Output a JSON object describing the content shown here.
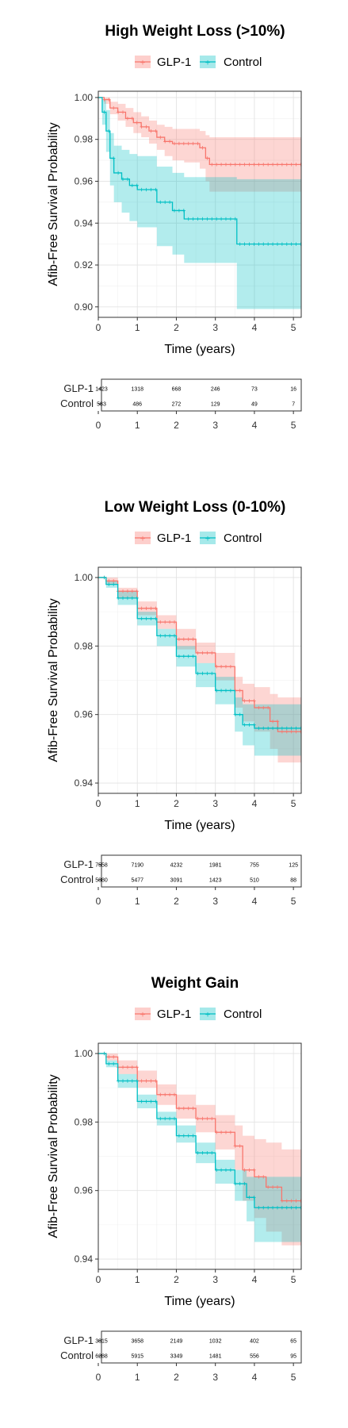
{
  "colors": {
    "glp1": "#F8766D",
    "control": "#00BFC4"
  },
  "chart_data": [
    {
      "type": "line",
      "title": "High Weight Loss (>10%)",
      "xlabel": "Time (years)",
      "ylabel": "Afib-Free Survival Probability",
      "xlim": [
        0,
        5.2
      ],
      "ylim": [
        0.895,
        1.003
      ],
      "xticks": [
        0,
        1,
        2,
        3,
        4,
        5
      ],
      "yticks": [
        0.9,
        0.92,
        0.94,
        0.96,
        0.98,
        1.0
      ],
      "legend": {
        "position": "top",
        "entries": [
          "GLP-1",
          "Control"
        ]
      },
      "grid": true,
      "series": [
        {
          "name": "GLP-1",
          "x": [
            0,
            0.15,
            0.3,
            0.5,
            0.7,
            0.9,
            1.1,
            1.3,
            1.5,
            1.7,
            1.9,
            2.2,
            2.6,
            2.75,
            2.85,
            5.2
          ],
          "y": [
            1.0,
            0.999,
            0.995,
            0.993,
            0.99,
            0.988,
            0.986,
            0.984,
            0.981,
            0.979,
            0.978,
            0.978,
            0.976,
            0.971,
            0.968,
            0.968
          ],
          "lower": [
            1.0,
            0.997,
            0.992,
            0.989,
            0.986,
            0.983,
            0.981,
            0.978,
            0.975,
            0.972,
            0.97,
            0.969,
            0.966,
            0.96,
            0.955,
            0.955
          ],
          "upper": [
            1.0,
            1.0,
            0.998,
            0.997,
            0.995,
            0.993,
            0.991,
            0.989,
            0.987,
            0.986,
            0.985,
            0.985,
            0.984,
            0.982,
            0.981,
            0.981
          ]
        },
        {
          "name": "Control",
          "x": [
            0,
            0.1,
            0.2,
            0.3,
            0.4,
            0.6,
            0.8,
            1.0,
            1.5,
            1.9,
            2.2,
            3.5,
            3.55,
            5.2
          ],
          "y": [
            1.0,
            0.993,
            0.984,
            0.971,
            0.964,
            0.961,
            0.958,
            0.956,
            0.95,
            0.946,
            0.942,
            0.942,
            0.93,
            0.93
          ],
          "lower": [
            1.0,
            0.987,
            0.974,
            0.958,
            0.95,
            0.945,
            0.941,
            0.938,
            0.929,
            0.925,
            0.921,
            0.921,
            0.899,
            0.899
          ],
          "upper": [
            1.0,
            0.999,
            0.994,
            0.983,
            0.977,
            0.975,
            0.973,
            0.972,
            0.967,
            0.964,
            0.962,
            0.962,
            0.961,
            0.961
          ]
        }
      ],
      "risk_table": {
        "times": [
          0,
          1,
          2,
          3,
          4,
          5
        ],
        "rows": [
          {
            "label": "GLP-1",
            "values": [
              "1423",
              "1318",
              "668",
              "246",
              "73",
              "16"
            ]
          },
          {
            "label": "Control",
            "values": [
              "583",
              "486",
              "272",
              "129",
              "49",
              "7"
            ]
          }
        ]
      }
    },
    {
      "type": "line",
      "title": "Low Weight Loss (0-10%)",
      "xlabel": "Time (years)",
      "ylabel": "Afib-Free Survival Probability",
      "xlim": [
        0,
        5.2
      ],
      "ylim": [
        0.937,
        1.003
      ],
      "xticks": [
        0,
        1,
        2,
        3,
        4,
        5
      ],
      "yticks": [
        0.94,
        0.96,
        0.98,
        1.0
      ],
      "legend": {
        "position": "top",
        "entries": [
          "GLP-1",
          "Control"
        ]
      },
      "grid": true,
      "series": [
        {
          "name": "GLP-1",
          "x": [
            0,
            0.2,
            0.5,
            1.0,
            1.5,
            2.0,
            2.5,
            3.0,
            3.5,
            3.7,
            4.0,
            4.4,
            4.6,
            5.2
          ],
          "y": [
            1.0,
            0.999,
            0.996,
            0.991,
            0.987,
            0.982,
            0.978,
            0.974,
            0.967,
            0.964,
            0.962,
            0.958,
            0.955,
            0.955
          ],
          "lower": [
            1.0,
            0.998,
            0.994,
            0.989,
            0.985,
            0.979,
            0.975,
            0.97,
            0.962,
            0.958,
            0.955,
            0.95,
            0.946,
            0.946
          ],
          "upper": [
            1.0,
            1.0,
            0.997,
            0.993,
            0.989,
            0.985,
            0.981,
            0.978,
            0.971,
            0.969,
            0.968,
            0.966,
            0.965,
            0.965
          ]
        },
        {
          "name": "Control",
          "x": [
            0,
            0.2,
            0.5,
            1.0,
            1.5,
            2.0,
            2.5,
            3.0,
            3.5,
            3.7,
            4.0,
            5.2
          ],
          "y": [
            1.0,
            0.998,
            0.994,
            0.988,
            0.983,
            0.977,
            0.972,
            0.967,
            0.96,
            0.957,
            0.956,
            0.956
          ],
          "lower": [
            1.0,
            0.997,
            0.992,
            0.986,
            0.98,
            0.974,
            0.968,
            0.963,
            0.955,
            0.951,
            0.948,
            0.948
          ],
          "upper": [
            1.0,
            0.999,
            0.996,
            0.99,
            0.985,
            0.98,
            0.975,
            0.971,
            0.965,
            0.963,
            0.963,
            0.963
          ]
        }
      ],
      "risk_table": {
        "times": [
          0,
          1,
          2,
          3,
          4,
          5
        ],
        "rows": [
          {
            "label": "GLP-1",
            "values": [
              "7558",
              "7190",
              "4232",
              "1981",
              "755",
              "125"
            ]
          },
          {
            "label": "Control",
            "values": [
              "5880",
              "5477",
              "3091",
              "1423",
              "510",
              "88"
            ]
          }
        ]
      }
    },
    {
      "type": "line",
      "title": "Weight Gain",
      "xlabel": "Time (years)",
      "ylabel": "Afib-Free Survival Probability",
      "xlim": [
        0,
        5.2
      ],
      "ylim": [
        0.937,
        1.003
      ],
      "xticks": [
        0,
        1,
        2,
        3,
        4,
        5
      ],
      "yticks": [
        0.94,
        0.96,
        0.98,
        1.0
      ],
      "legend": {
        "position": "top",
        "entries": [
          "GLP-1",
          "Control"
        ]
      },
      "grid": true,
      "series": [
        {
          "name": "GLP-1",
          "x": [
            0,
            0.2,
            0.5,
            1.0,
            1.5,
            2.0,
            2.5,
            3.0,
            3.5,
            3.7,
            4.0,
            4.3,
            4.7,
            5.2
          ],
          "y": [
            1.0,
            0.999,
            0.996,
            0.992,
            0.988,
            0.984,
            0.981,
            0.977,
            0.973,
            0.966,
            0.964,
            0.961,
            0.957,
            0.957
          ],
          "lower": [
            1.0,
            0.998,
            0.994,
            0.99,
            0.985,
            0.981,
            0.977,
            0.972,
            0.966,
            0.957,
            0.952,
            0.948,
            0.944,
            0.944
          ],
          "upper": [
            1.0,
            1.0,
            0.998,
            0.995,
            0.991,
            0.988,
            0.985,
            0.982,
            0.979,
            0.976,
            0.975,
            0.974,
            0.972,
            0.972
          ]
        },
        {
          "name": "Control",
          "x": [
            0,
            0.2,
            0.5,
            1.0,
            1.5,
            2.0,
            2.5,
            3.0,
            3.5,
            3.8,
            4.0,
            5.2
          ],
          "y": [
            1.0,
            0.997,
            0.992,
            0.986,
            0.981,
            0.976,
            0.971,
            0.966,
            0.962,
            0.958,
            0.955,
            0.955
          ],
          "lower": [
            1.0,
            0.996,
            0.99,
            0.984,
            0.979,
            0.974,
            0.968,
            0.962,
            0.957,
            0.951,
            0.945,
            0.945
          ],
          "upper": [
            1.0,
            0.998,
            0.994,
            0.988,
            0.983,
            0.979,
            0.974,
            0.969,
            0.966,
            0.964,
            0.964,
            0.964
          ]
        }
      ],
      "risk_table": {
        "times": [
          0,
          1,
          2,
          3,
          4,
          5
        ],
        "rows": [
          {
            "label": "GLP-1",
            "values": [
              "3815",
              "3658",
              "2149",
              "1032",
              "402",
              "65"
            ]
          },
          {
            "label": "Control",
            "values": [
              "6288",
              "5915",
              "3349",
              "1481",
              "556",
              "95"
            ]
          }
        ]
      }
    }
  ]
}
